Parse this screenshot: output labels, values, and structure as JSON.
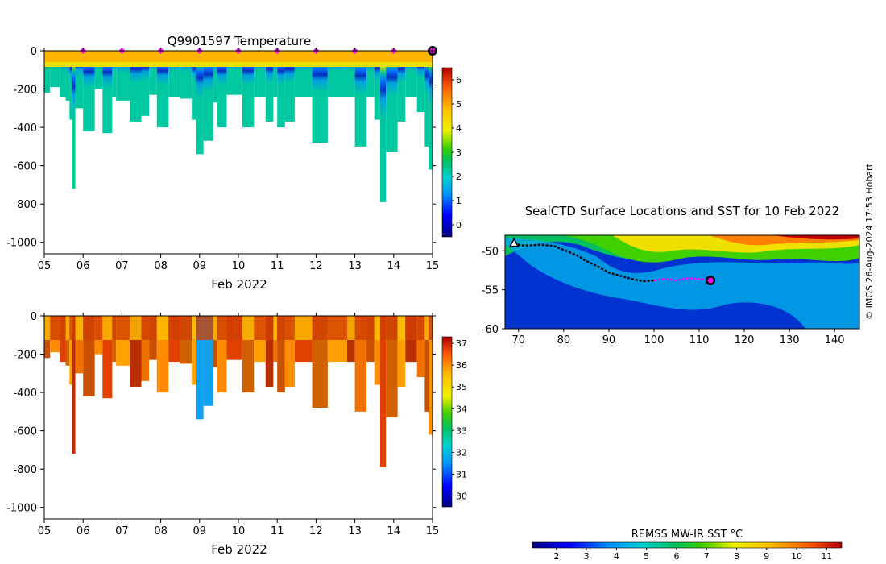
{
  "figure": {
    "temperature_title": "Q9901597  Temperature",
    "map_title": "SealCTD Surface Locations and SST for 10 Feb 2022",
    "credit": "© IMOS 26-Aug-2024 17:53 Hobart",
    "sst_colorbar_label": "REMSS MW-IR SST °C"
  },
  "chart_data": [
    {
      "id": "temperature",
      "type": "heatmap",
      "title": "Q9901597  Temperature",
      "xlabel": "Feb 2022",
      "ylabel": "",
      "xlim": [
        5,
        15
      ],
      "ylim": [
        -1060,
        0
      ],
      "x_ticks": [
        "05",
        "06",
        "07",
        "08",
        "09",
        "10",
        "11",
        "12",
        "13",
        "14",
        "15"
      ],
      "y_ticks": [
        "0",
        "-200",
        "-400",
        "-600",
        "-800",
        "-1000"
      ],
      "colorbar": {
        "min": -0.5,
        "max": 6.5,
        "ticks": [
          "0",
          "1",
          "2",
          "3",
          "4",
          "5",
          "6"
        ]
      },
      "surface_markers_days": [
        6,
        7,
        8,
        9,
        10,
        11,
        12,
        13,
        14
      ],
      "current_marker_day": 15,
      "profile_max_depths": [
        [
          5.0,
          -220
        ],
        [
          5.15,
          -190
        ],
        [
          5.4,
          -240
        ],
        [
          5.55,
          -260
        ],
        [
          5.65,
          -360
        ],
        [
          5.72,
          -720
        ],
        [
          5.8,
          -300
        ],
        [
          6.0,
          -420
        ],
        [
          6.3,
          -200
        ],
        [
          6.5,
          -430
        ],
        [
          6.75,
          -240
        ],
        [
          6.85,
          -260
        ],
        [
          7.2,
          -370
        ],
        [
          7.5,
          -340
        ],
        [
          7.7,
          -230
        ],
        [
          7.9,
          -400
        ],
        [
          8.2,
          -240
        ],
        [
          8.5,
          -250
        ],
        [
          8.8,
          -360
        ],
        [
          8.9,
          -540
        ],
        [
          9.1,
          -470
        ],
        [
          9.35,
          -270
        ],
        [
          9.45,
          -400
        ],
        [
          9.7,
          -230
        ],
        [
          10.1,
          -400
        ],
        [
          10.4,
          -240
        ],
        [
          10.7,
          -370
        ],
        [
          10.9,
          -240
        ],
        [
          11.0,
          -400
        ],
        [
          11.2,
          -370
        ],
        [
          11.45,
          -240
        ],
        [
          11.9,
          -480
        ],
        [
          12.3,
          -240
        ],
        [
          12.8,
          -240
        ],
        [
          13.0,
          -500
        ],
        [
          13.3,
          -240
        ],
        [
          13.5,
          -360
        ],
        [
          13.65,
          -790
        ],
        [
          13.8,
          -530
        ],
        [
          14.1,
          -370
        ],
        [
          14.3,
          -240
        ],
        [
          14.6,
          -320
        ],
        [
          14.8,
          -500
        ],
        [
          14.9,
          -620
        ]
      ]
    },
    {
      "id": "salinity",
      "type": "heatmap",
      "title": "",
      "xlabel": "Feb 2022",
      "ylabel": "",
      "xlim": [
        5,
        15
      ],
      "ylim": [
        -1060,
        0
      ],
      "x_ticks": [
        "05",
        "06",
        "07",
        "08",
        "09",
        "10",
        "11",
        "12",
        "13",
        "14",
        "15"
      ],
      "y_ticks": [
        "0",
        "-200",
        "-400",
        "-600",
        "-800",
        "-1000"
      ],
      "colorbar": {
        "min": 29.5,
        "max": 37.3,
        "ticks": [
          "30",
          "31",
          "32",
          "33",
          "34",
          "35",
          "36",
          "37"
        ]
      }
    },
    {
      "id": "sst_map",
      "type": "heatmap",
      "title": "SealCTD Surface Locations and SST for 10 Feb 2022",
      "xlabel": "",
      "ylabel": "",
      "xlim": [
        67,
        145.5
      ],
      "ylim": [
        -60,
        -48
      ],
      "x_ticks": [
        "70",
        "80",
        "90",
        "100",
        "110",
        "120",
        "130",
        "140"
      ],
      "y_ticks": [
        "-50",
        "-55",
        "-60"
      ],
      "colorbar": {
        "min": 1.2,
        "max": 11.5,
        "label": "REMSS MW-IR SST °C",
        "ticks": [
          "2",
          "3",
          "4",
          "5",
          "6",
          "7",
          "8",
          "9",
          "10",
          "11"
        ]
      },
      "track": [
        [
          69.0,
          -49.0
        ],
        [
          70.5,
          -49.3
        ],
        [
          72.5,
          -49.3
        ],
        [
          75.0,
          -49.2
        ],
        [
          78.0,
          -49.4
        ],
        [
          80.5,
          -50.0
        ],
        [
          83.0,
          -50.6
        ],
        [
          85.0,
          -51.3
        ],
        [
          87.5,
          -52.0
        ],
        [
          90.0,
          -52.8
        ],
        [
          92.5,
          -53.2
        ],
        [
          95.0,
          -53.6
        ],
        [
          97.5,
          -53.9
        ],
        [
          100.0,
          -53.8
        ]
      ],
      "recent_track": [
        [
          100.0,
          -53.8
        ],
        [
          102.5,
          -53.6
        ],
        [
          105.0,
          -53.8
        ],
        [
          107.5,
          -53.5
        ],
        [
          110.0,
          -53.6
        ],
        [
          112.5,
          -53.8
        ]
      ],
      "start": [
        69.0,
        -49.0
      ],
      "current": [
        112.5,
        -53.8
      ]
    }
  ]
}
